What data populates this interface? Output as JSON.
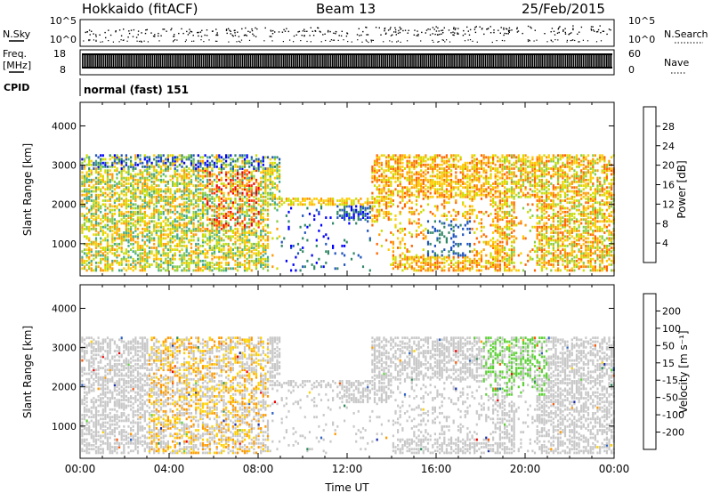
{
  "header": {
    "station": "Hokkaido (fitACF)",
    "beam": "Beam 13",
    "date": "25/Feb/2015"
  },
  "noise_panel": {
    "left_label": "N.Sky",
    "right_label": "N.Search",
    "left_ticks": [
      "10^5",
      "10^0"
    ],
    "right_ticks": [
      "10^5",
      "10^0"
    ]
  },
  "freq_panel": {
    "left_label_1": "Freq.",
    "left_label_2": "[MHz]",
    "left_ticks": [
      "18",
      "8"
    ],
    "right_ticks": [
      "60",
      "0"
    ],
    "right_label": "Nave"
  },
  "cpid": {
    "label": "CPID",
    "value": "normal (fast) 151"
  },
  "colors": {
    "power": [
      "#0000ff",
      "#2255bb",
      "#338866",
      "#44aa88",
      "#88cc44",
      "#ccdd00",
      "#ffcc00",
      "#ff9900",
      "#ff6600",
      "#ff3300",
      "#ee0000"
    ],
    "velocity": [
      "#1a2ea8",
      "#2f63c4",
      "#2e8b57",
      "#5dd136",
      "#c8c8c8",
      "#c8c8c8",
      "#ffd000",
      "#ff9900",
      "#ff5500",
      "#ee0000"
    ]
  },
  "chart_data": [
    {
      "type": "heatmap",
      "name": "power",
      "ylabel": "Slant Range [km]",
      "yticks": [
        1000,
        2000,
        3000,
        4000
      ],
      "ylim": [
        180,
        4600
      ],
      "xlim": [
        0,
        24
      ],
      "xticks": [
        "00:00",
        "04:00",
        "08:00",
        "12:00",
        "16:00",
        "20:00",
        "00:00"
      ],
      "xtick_hours": [
        0,
        4,
        8,
        12,
        16,
        20,
        24
      ],
      "colorbar": {
        "label": "Power [dB]",
        "range": [
          0,
          32
        ],
        "ticks": [
          "4",
          "8",
          "12",
          "16",
          "20",
          "24",
          "28"
        ],
        "tick_values": [
          4,
          8,
          12,
          16,
          20,
          24,
          28
        ]
      }
    },
    {
      "type": "heatmap",
      "name": "velocity",
      "ylabel": "Slant Range [km]",
      "yticks": [
        1000,
        2000,
        3000,
        4000
      ],
      "ylim": [
        180,
        4600
      ],
      "xlim": [
        0,
        24
      ],
      "xlabel": "Time UT",
      "xticks": [
        "00:00",
        "04:00",
        "08:00",
        "12:00",
        "16:00",
        "20:00",
        "00:00"
      ],
      "xtick_hours": [
        0,
        4,
        8,
        12,
        16,
        20,
        24
      ],
      "colorbar": {
        "label": "Velocity [m s⁻¹]",
        "ticks": [
          "200",
          "100",
          "50",
          "15",
          "-15",
          "-50",
          "-100",
          "-200"
        ]
      }
    }
  ]
}
